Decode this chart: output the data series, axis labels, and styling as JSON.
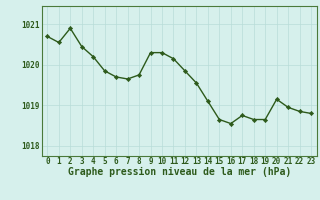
{
  "x": [
    0,
    1,
    2,
    3,
    4,
    5,
    6,
    7,
    8,
    9,
    10,
    11,
    12,
    13,
    14,
    15,
    16,
    17,
    18,
    19,
    20,
    21,
    22,
    23
  ],
  "y": [
    1020.7,
    1020.55,
    1020.9,
    1020.45,
    1020.2,
    1019.85,
    1019.7,
    1019.65,
    1019.75,
    1020.3,
    1020.3,
    1020.15,
    1019.85,
    1019.55,
    1019.1,
    1018.65,
    1018.55,
    1018.75,
    1018.65,
    1018.65,
    1019.15,
    1018.95,
    1018.85,
    1018.8
  ],
  "line_color": "#2d5a1b",
  "marker_color": "#2d5a1b",
  "bg_color": "#d6f0ec",
  "grid_color": "#b8ddd8",
  "axis_color": "#4a7a3a",
  "tick_color": "#2d5a1b",
  "label_color": "#2d5a1b",
  "xlabel": "Graphe pression niveau de la mer (hPa)",
  "ylim_min": 1017.75,
  "ylim_max": 1021.45,
  "yticks": [
    1018,
    1019,
    1020,
    1021
  ],
  "xticks": [
    0,
    1,
    2,
    3,
    4,
    5,
    6,
    7,
    8,
    9,
    10,
    11,
    12,
    13,
    14,
    15,
    16,
    17,
    18,
    19,
    20,
    21,
    22,
    23
  ],
  "tick_fontsize": 5.5,
  "xlabel_fontsize": 7.0,
  "linewidth": 1.0,
  "markersize": 2.2
}
